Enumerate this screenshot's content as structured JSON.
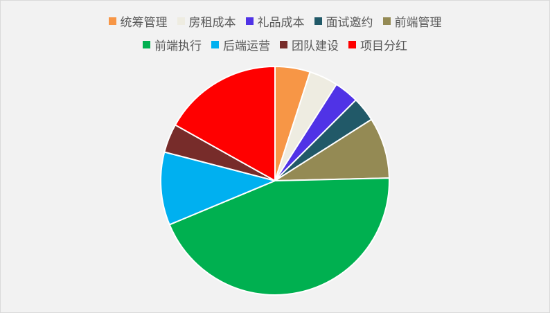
{
  "chart_data": {
    "type": "pie",
    "title": "",
    "legend_position": "top",
    "start_angle_deg": 0,
    "direction": "clockwise",
    "categories": [
      "统筹管理",
      "房租成本",
      "礼品成本",
      "面试邀约",
      "前端管理",
      "前端执行",
      "后端运营",
      "团队建设",
      "项目分红"
    ],
    "values": [
      5,
      4.1,
      3.5,
      3.5,
      8.7,
      44.4,
      10.4,
      4.1,
      17.0
    ],
    "colors": [
      "#f79646",
      "#eeece1",
      "#5033e6",
      "#215968",
      "#948a54",
      "#00b050",
      "#00b0f0",
      "#772c2a",
      "#ff0000"
    ],
    "legend_rows": [
      [
        0,
        1,
        2,
        3,
        4
      ],
      [
        5,
        6,
        7,
        8
      ]
    ]
  }
}
